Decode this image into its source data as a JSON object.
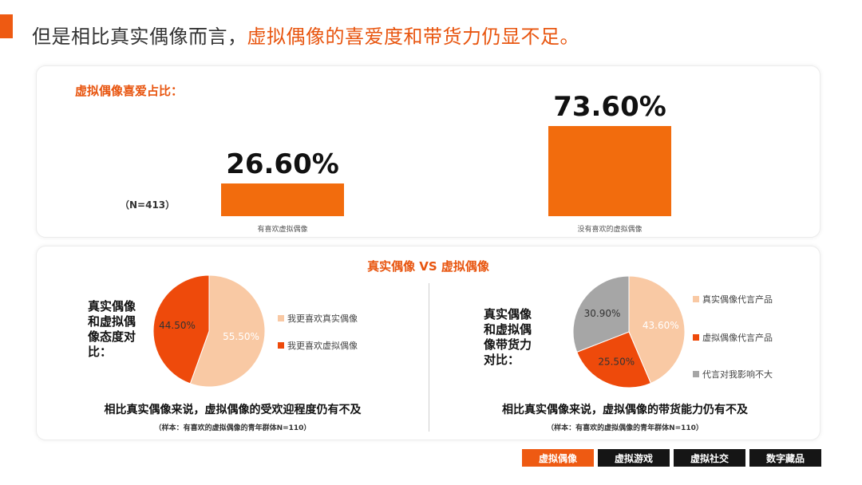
{
  "headline": {
    "part1": "但是相比真实偶像而言，",
    "part2": "虚拟偶像的喜爱度和带货力仍显不足。"
  },
  "colors": {
    "accent": "#ee5a12",
    "bar": "#f26c0d",
    "pie_light": "#f9c9a4",
    "pie_dark": "#ee4a0b",
    "pie_gray": "#a6a6a6",
    "nav_dark": "#151515"
  },
  "top_card": {
    "title": "虚拟偶像喜爱占比：",
    "sample": "（N=413）"
  },
  "bottom_card": {
    "title": "真实偶像 VS 虚拟偶像",
    "left": {
      "title_lines": [
        "真实偶像",
        "和虚拟偶",
        "像态度对",
        "比："
      ],
      "conclusion": "相比真实偶像来说，虚拟偶像的受欢迎程度仍有不及",
      "sample_note": "（样本：有喜欢的虚拟偶像的青年群体N=110）"
    },
    "right": {
      "title_lines": [
        "真实偶像",
        "和虚拟偶",
        "像带货力",
        "对比："
      ],
      "conclusion": "相比真实偶像来说，虚拟偶像的带货能力仍有不及",
      "sample_note": "（样本：有喜欢的虚拟偶像的青年群体N=110）"
    }
  },
  "chart_data": [
    {
      "type": "bar",
      "categories": [
        "有喜欢虚拟偶像",
        "没有喜欢的虚拟偶像"
      ],
      "values": [
        26.6,
        73.6
      ],
      "value_labels": [
        "26.60%",
        "73.60%"
      ],
      "ylim": [
        0,
        100
      ],
      "title": "虚拟偶像喜爱占比："
    },
    {
      "type": "pie",
      "labels": [
        "我更喜欢真实偶像",
        "我更喜欢虚拟偶像"
      ],
      "values": [
        55.5,
        44.5
      ],
      "value_labels": [
        "55.50%",
        "44.50%"
      ],
      "colors": [
        "#f9c9a4",
        "#ee4a0b"
      ]
    },
    {
      "type": "pie",
      "labels": [
        "真实偶像代言产品",
        "虚拟偶像代言产品",
        "代言对我影响不大"
      ],
      "values": [
        43.6,
        25.5,
        30.9
      ],
      "value_labels": [
        "43.60%",
        "25.50%",
        "30.90%"
      ],
      "colors": [
        "#f9c9a4",
        "#ee4a0b",
        "#a6a6a6"
      ]
    }
  ],
  "nav": {
    "tabs": [
      {
        "label": "虚拟偶像",
        "active": true
      },
      {
        "label": "虚拟游戏",
        "active": false
      },
      {
        "label": "虚拟社交",
        "active": false
      },
      {
        "label": "数字藏品",
        "active": false
      }
    ]
  }
}
